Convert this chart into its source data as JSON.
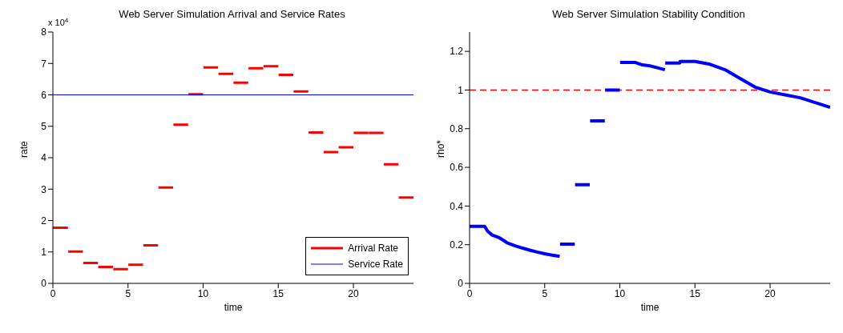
{
  "chart_data": [
    {
      "type": "line",
      "title": "Web Server Simulation Arrival and Service Rates",
      "xlabel": "time",
      "ylabel": "rate",
      "annotations": [
        "x 10$^{4}$"
      ],
      "xlim": [
        0,
        24
      ],
      "xticks": [
        0,
        5,
        10,
        15,
        20
      ],
      "ylim": [
        0,
        8
      ],
      "yticks": [
        0,
        1,
        2,
        3,
        4,
        5,
        6,
        7,
        8
      ],
      "legend": "bottom right",
      "marker": "none",
      "line_style": "solid",
      "series": [
        {
          "name": "Arrival Rate",
          "color": "#ff0000",
          "x": [
            0,
            1,
            1.01,
            1.02,
            2,
            2.01,
            2.02,
            3,
            3.01,
            3.02,
            4,
            4.01,
            4.02,
            5,
            5.01,
            5.02,
            6,
            6.01,
            6.02,
            7,
            7.01,
            7.02,
            8,
            8.01,
            8.02,
            9,
            9.01,
            9.02,
            10,
            10.01,
            10.02,
            11,
            11.01,
            11.02,
            12,
            12.01,
            12.02,
            13,
            13.01,
            13.02,
            14,
            14.01,
            14.02,
            15,
            15.01,
            15.02,
            16,
            16.01,
            16.02,
            17,
            17.01,
            17.02,
            18,
            18.01,
            18.02,
            19,
            19.01,
            19.02,
            20,
            20.01,
            20.02,
            21,
            21.01,
            21.02,
            22,
            22.01,
            22.02,
            23,
            23.01,
            23.02,
            24
          ],
          "values": [
            1.77,
            1.77,
            null,
            1.01,
            1.01,
            null,
            0.65,
            0.65,
            null,
            0.52,
            0.52,
            null,
            0.45,
            0.45,
            null,
            0.59,
            0.59,
            null,
            1.21,
            1.21,
            null,
            3.05,
            3.05,
            null,
            5.05,
            5.05,
            null,
            6.02,
            6.02,
            null,
            6.87,
            6.87,
            null,
            6.67,
            6.67,
            null,
            6.39,
            6.39,
            null,
            6.85,
            6.85,
            null,
            6.91,
            6.91,
            null,
            6.64,
            6.64,
            null,
            6.11,
            6.11,
            null,
            4.8,
            4.8,
            null,
            4.18,
            4.18,
            null,
            4.33,
            4.33,
            null,
            4.79,
            4.79,
            null,
            4.79,
            4.79,
            null,
            3.79,
            3.79,
            null,
            2.73,
            2.73
          ]
        },
        {
          "name": "Service Rate",
          "color": "#0000ff",
          "x": [
            0,
            24
          ],
          "values": [
            6,
            6
          ]
        }
      ]
    },
    {
      "type": "line",
      "title": "Web Server Simulation Stability Condition",
      "xlabel": "time",
      "ylabel": "rho*",
      "xlim": [
        0,
        24
      ],
      "xticks": [
        0,
        5,
        10,
        15,
        20
      ],
      "ylim": [
        0,
        1.3
      ],
      "yticks": [
        0,
        0.2,
        0.4,
        0.6,
        0.8,
        1,
        1.2
      ],
      "legend": false,
      "marker": "none",
      "line_style": "solid",
      "ref_lines": [
        {
          "axis": "y",
          "value": 1,
          "color": "#ff0000",
          "line_style": "dashed"
        }
      ],
      "series": [
        {
          "color": "#0000ff",
          "x": [
            0,
            1,
            1.2,
            1.5,
            2,
            2.5,
            3,
            3.5,
            4,
            4.5,
            5,
            5.5,
            6,
            6.01,
            6.02,
            7,
            7.01,
            7.02,
            8,
            8.01,
            8.02,
            9,
            9.01,
            9.02,
            10,
            10.01,
            10.02,
            11,
            11.5,
            12,
            12.5,
            13,
            13.01,
            13.02,
            14,
            14.01,
            15,
            16,
            17,
            18,
            19,
            20,
            21,
            22,
            23,
            24
          ],
          "values": [
            0.295,
            0.295,
            0.27,
            0.25,
            0.235,
            0.21,
            0.195,
            0.183,
            0.172,
            0.162,
            0.153,
            0.146,
            0.14,
            null,
            0.203,
            0.203,
            null,
            0.51,
            0.51,
            null,
            0.84,
            0.84,
            null,
            1.0,
            1.0,
            null,
            1.143,
            1.143,
            1.13,
            1.125,
            1.115,
            1.105,
            null,
            1.14,
            1.14,
            1.148,
            1.148,
            1.133,
            1.105,
            1.06,
            1.015,
            0.99,
            0.975,
            0.96,
            0.935,
            0.91
          ]
        }
      ]
    }
  ]
}
